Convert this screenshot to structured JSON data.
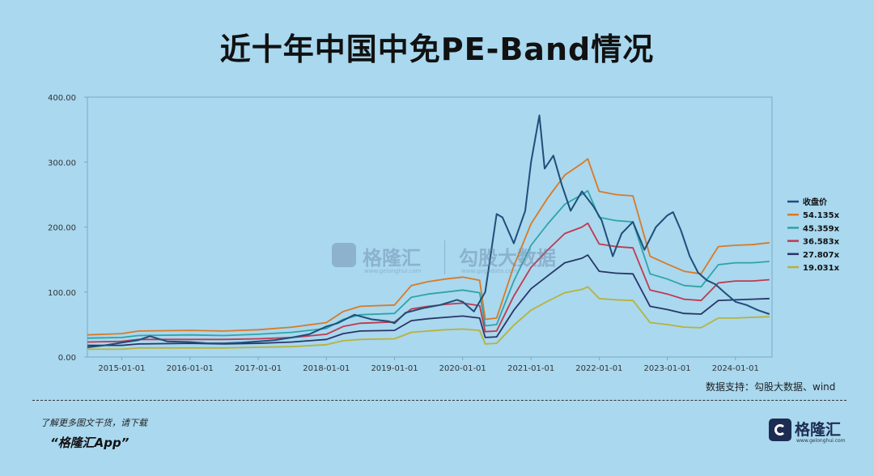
{
  "title": "近十年中国中免PE-Band情况",
  "source": "数据支持：勾股大数据、wind",
  "footer": {
    "line1": "了解更多图文干货，请下载",
    "line2": "“格隆汇App”"
  },
  "logo": {
    "brand": "格隆汇",
    "url": "www.gelonghui.com"
  },
  "watermark": {
    "brand1": "格隆汇",
    "url1": "www.gelonghui.com",
    "brand2": "勾股大数据",
    "url2": "www.gogudata.com"
  },
  "chart_data": {
    "type": "line",
    "title": "近十年中国中免PE-Band情况",
    "xlabel": "",
    "ylabel": "",
    "ylim": [
      0,
      400
    ],
    "y_ticks": [
      "0.00",
      "100.00",
      "200.00",
      "300.00",
      "400.00"
    ],
    "x_ticks": [
      "2015-01-01",
      "2016-01-01",
      "2017-01-01",
      "2018-01-01",
      "2019-01-01",
      "2020-01-01",
      "2021-01-01",
      "2022-01-01",
      "2023-01-01",
      "2024-01-01"
    ],
    "xlim": [
      "2014-07-01",
      "2024-07-15"
    ],
    "legend_position": "right",
    "grid": false,
    "series": [
      {
        "name": "收盘价",
        "color": "#1f4e79",
        "points": [
          [
            "2014-07-01",
            15
          ],
          [
            "2014-10-01",
            18
          ],
          [
            "2015-01-01",
            22
          ],
          [
            "2015-04-01",
            26
          ],
          [
            "2015-06-01",
            32
          ],
          [
            "2015-09-01",
            24
          ],
          [
            "2016-01-01",
            23
          ],
          [
            "2016-04-01",
            21
          ],
          [
            "2016-07-01",
            21
          ],
          [
            "2016-10-01",
            22
          ],
          [
            "2017-01-01",
            24
          ],
          [
            "2017-04-01",
            26
          ],
          [
            "2017-07-01",
            30
          ],
          [
            "2017-10-01",
            35
          ],
          [
            "2018-01-01",
            47
          ],
          [
            "2018-03-01",
            52
          ],
          [
            "2018-06-01",
            65
          ],
          [
            "2018-09-01",
            58
          ],
          [
            "2018-12-01",
            55
          ],
          [
            "2019-01-01",
            52
          ],
          [
            "2019-03-01",
            68
          ],
          [
            "2019-06-01",
            75
          ],
          [
            "2019-09-01",
            80
          ],
          [
            "2019-12-01",
            88
          ],
          [
            "2020-01-01",
            85
          ],
          [
            "2020-03-01",
            70
          ],
          [
            "2020-05-01",
            100
          ],
          [
            "2020-07-01",
            220
          ],
          [
            "2020-08-01",
            215
          ],
          [
            "2020-10-01",
            175
          ],
          [
            "2020-12-01",
            225
          ],
          [
            "2021-01-01",
            300
          ],
          [
            "2021-02-15",
            372
          ],
          [
            "2021-03-15",
            290
          ],
          [
            "2021-05-01",
            310
          ],
          [
            "2021-06-15",
            265
          ],
          [
            "2021-08-01",
            225
          ],
          [
            "2021-10-01",
            255
          ],
          [
            "2021-12-01",
            232
          ],
          [
            "2022-01-15",
            210
          ],
          [
            "2022-03-15",
            155
          ],
          [
            "2022-05-01",
            190
          ],
          [
            "2022-07-01",
            208
          ],
          [
            "2022-09-01",
            165
          ],
          [
            "2022-11-01",
            200
          ],
          [
            "2023-01-01",
            218
          ],
          [
            "2023-02-01",
            223
          ],
          [
            "2023-03-15",
            195
          ],
          [
            "2023-05-01",
            155
          ],
          [
            "2023-06-15",
            130
          ],
          [
            "2023-08-01",
            118
          ],
          [
            "2023-09-15",
            112
          ],
          [
            "2023-11-01",
            100
          ],
          [
            "2024-01-01",
            85
          ],
          [
            "2024-03-01",
            80
          ],
          [
            "2024-05-01",
            72
          ],
          [
            "2024-07-01",
            66
          ]
        ]
      },
      {
        "name": "54.135x",
        "color": "#d97a25",
        "points": [
          [
            "2014-07-01",
            34
          ],
          [
            "2015-01-01",
            36
          ],
          [
            "2015-04-01",
            40
          ],
          [
            "2016-01-01",
            41
          ],
          [
            "2016-07-01",
            40
          ],
          [
            "2017-01-01",
            42
          ],
          [
            "2017-07-01",
            46
          ],
          [
            "2018-01-01",
            53
          ],
          [
            "2018-04-01",
            70
          ],
          [
            "2018-07-01",
            78
          ],
          [
            "2019-01-01",
            80
          ],
          [
            "2019-04-01",
            110
          ],
          [
            "2019-07-01",
            116
          ],
          [
            "2019-10-01",
            120
          ],
          [
            "2020-01-01",
            123
          ],
          [
            "2020-04-01",
            118
          ],
          [
            "2020-05-01",
            58
          ],
          [
            "2020-07-01",
            60
          ],
          [
            "2020-10-01",
            140
          ],
          [
            "2021-01-01",
            205
          ],
          [
            "2021-04-01",
            245
          ],
          [
            "2021-07-01",
            280
          ],
          [
            "2021-10-01",
            298
          ],
          [
            "2021-11-01",
            305
          ],
          [
            "2022-01-01",
            255
          ],
          [
            "2022-04-01",
            250
          ],
          [
            "2022-07-01",
            248
          ],
          [
            "2022-10-01",
            155
          ],
          [
            "2023-01-01",
            143
          ],
          [
            "2023-04-01",
            132
          ],
          [
            "2023-07-01",
            128
          ],
          [
            "2023-10-01",
            170
          ],
          [
            "2024-01-01",
            172
          ],
          [
            "2024-04-01",
            173
          ],
          [
            "2024-07-01",
            176
          ]
        ]
      },
      {
        "name": "45.359x",
        "color": "#2fa4a8",
        "points": [
          [
            "2014-07-01",
            29
          ],
          [
            "2015-01-01",
            30
          ],
          [
            "2015-04-01",
            33
          ],
          [
            "2016-01-01",
            34
          ],
          [
            "2016-07-01",
            33
          ],
          [
            "2017-01-01",
            35
          ],
          [
            "2017-07-01",
            38
          ],
          [
            "2018-01-01",
            44
          ],
          [
            "2018-04-01",
            58
          ],
          [
            "2018-07-01",
            65
          ],
          [
            "2019-01-01",
            67
          ],
          [
            "2019-04-01",
            92
          ],
          [
            "2019-07-01",
            97
          ],
          [
            "2019-10-01",
            100
          ],
          [
            "2020-01-01",
            103
          ],
          [
            "2020-04-01",
            99
          ],
          [
            "2020-05-01",
            48
          ],
          [
            "2020-07-01",
            50
          ],
          [
            "2020-10-01",
            117
          ],
          [
            "2021-01-01",
            172
          ],
          [
            "2021-04-01",
            205
          ],
          [
            "2021-07-01",
            235
          ],
          [
            "2021-10-01",
            250
          ],
          [
            "2021-11-01",
            256
          ],
          [
            "2022-01-01",
            215
          ],
          [
            "2022-04-01",
            210
          ],
          [
            "2022-07-01",
            208
          ],
          [
            "2022-10-01",
            128
          ],
          [
            "2023-01-01",
            120
          ],
          [
            "2023-04-01",
            110
          ],
          [
            "2023-07-01",
            108
          ],
          [
            "2023-10-01",
            142
          ],
          [
            "2024-01-01",
            145
          ],
          [
            "2024-04-01",
            145
          ],
          [
            "2024-07-01",
            147
          ]
        ]
      },
      {
        "name": "36.583x",
        "color": "#c0394d",
        "points": [
          [
            "2014-07-01",
            23
          ],
          [
            "2015-01-01",
            24
          ],
          [
            "2015-04-01",
            27
          ],
          [
            "2016-01-01",
            27
          ],
          [
            "2016-07-01",
            27
          ],
          [
            "2017-01-01",
            28
          ],
          [
            "2017-07-01",
            30
          ],
          [
            "2018-01-01",
            35
          ],
          [
            "2018-04-01",
            47
          ],
          [
            "2018-07-01",
            52
          ],
          [
            "2019-01-01",
            54
          ],
          [
            "2019-04-01",
            74
          ],
          [
            "2019-07-01",
            78
          ],
          [
            "2019-10-01",
            81
          ],
          [
            "2020-01-01",
            83
          ],
          [
            "2020-04-01",
            79
          ],
          [
            "2020-05-01",
            39
          ],
          [
            "2020-07-01",
            40
          ],
          [
            "2020-10-01",
            94
          ],
          [
            "2021-01-01",
            138
          ],
          [
            "2021-04-01",
            165
          ],
          [
            "2021-07-01",
            190
          ],
          [
            "2021-10-01",
            200
          ],
          [
            "2021-11-01",
            206
          ],
          [
            "2022-01-01",
            174
          ],
          [
            "2022-04-01",
            170
          ],
          [
            "2022-07-01",
            168
          ],
          [
            "2022-10-01",
            103
          ],
          [
            "2023-01-01",
            97
          ],
          [
            "2023-04-01",
            89
          ],
          [
            "2023-07-01",
            87
          ],
          [
            "2023-10-01",
            114
          ],
          [
            "2024-01-01",
            117
          ],
          [
            "2024-04-01",
            117
          ],
          [
            "2024-07-01",
            119
          ]
        ]
      },
      {
        "name": "27.807x",
        "color": "#2a3566",
        "points": [
          [
            "2014-07-01",
            18
          ],
          [
            "2015-01-01",
            18
          ],
          [
            "2015-04-01",
            20
          ],
          [
            "2016-01-01",
            21
          ],
          [
            "2016-07-01",
            20
          ],
          [
            "2017-01-01",
            21
          ],
          [
            "2017-07-01",
            23
          ],
          [
            "2018-01-01",
            27
          ],
          [
            "2018-04-01",
            36
          ],
          [
            "2018-07-01",
            40
          ],
          [
            "2019-01-01",
            41
          ],
          [
            "2019-04-01",
            56
          ],
          [
            "2019-07-01",
            59
          ],
          [
            "2019-10-01",
            61
          ],
          [
            "2020-01-01",
            63
          ],
          [
            "2020-04-01",
            60
          ],
          [
            "2020-05-01",
            30
          ],
          [
            "2020-07-01",
            31
          ],
          [
            "2020-10-01",
            72
          ],
          [
            "2021-01-01",
            105
          ],
          [
            "2021-04-01",
            125
          ],
          [
            "2021-07-01",
            145
          ],
          [
            "2021-10-01",
            152
          ],
          [
            "2021-11-01",
            157
          ],
          [
            "2022-01-01",
            132
          ],
          [
            "2022-04-01",
            129
          ],
          [
            "2022-07-01",
            128
          ],
          [
            "2022-10-01",
            78
          ],
          [
            "2023-01-01",
            73
          ],
          [
            "2023-04-01",
            67
          ],
          [
            "2023-07-01",
            66
          ],
          [
            "2023-10-01",
            87
          ],
          [
            "2024-01-01",
            88
          ],
          [
            "2024-04-01",
            89
          ],
          [
            "2024-07-01",
            90
          ]
        ]
      },
      {
        "name": "19.031x",
        "color": "#b8b23a",
        "points": [
          [
            "2014-07-01",
            12
          ],
          [
            "2015-01-01",
            12
          ],
          [
            "2015-04-01",
            14
          ],
          [
            "2016-01-01",
            14
          ],
          [
            "2016-07-01",
            14
          ],
          [
            "2017-01-01",
            15
          ],
          [
            "2017-07-01",
            16
          ],
          [
            "2018-01-01",
            19
          ],
          [
            "2018-04-01",
            25
          ],
          [
            "2018-07-01",
            27
          ],
          [
            "2019-01-01",
            28
          ],
          [
            "2019-04-01",
            38
          ],
          [
            "2019-07-01",
            40
          ],
          [
            "2019-10-01",
            42
          ],
          [
            "2020-01-01",
            43
          ],
          [
            "2020-04-01",
            41
          ],
          [
            "2020-05-01",
            20
          ],
          [
            "2020-07-01",
            21
          ],
          [
            "2020-10-01",
            49
          ],
          [
            "2021-01-01",
            72
          ],
          [
            "2021-04-01",
            86
          ],
          [
            "2021-07-01",
            99
          ],
          [
            "2021-10-01",
            104
          ],
          [
            "2021-11-01",
            108
          ],
          [
            "2022-01-01",
            90
          ],
          [
            "2022-04-01",
            88
          ],
          [
            "2022-07-01",
            87
          ],
          [
            "2022-10-01",
            53
          ],
          [
            "2023-01-01",
            50
          ],
          [
            "2023-04-01",
            46
          ],
          [
            "2023-07-01",
            45
          ],
          [
            "2023-10-01",
            60
          ],
          [
            "2024-01-01",
            60
          ],
          [
            "2024-04-01",
            61
          ],
          [
            "2024-07-01",
            62
          ]
        ]
      }
    ]
  }
}
